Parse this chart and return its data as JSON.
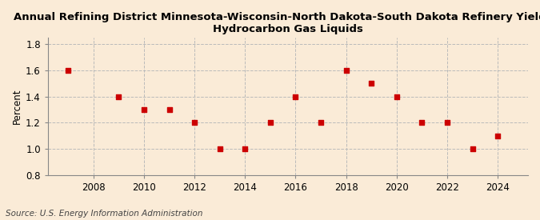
{
  "title": "Annual Refining District Minnesota-Wisconsin-North Dakota-South Dakota Refinery Yield of\nHydrocarbon Gas Liquids",
  "ylabel": "Percent",
  "source": "Source: U.S. Energy Information Administration",
  "background_color": "#faebd7",
  "plot_background_color": "#faebd7",
  "years": [
    2007,
    2009,
    2010,
    2011,
    2012,
    2013,
    2014,
    2015,
    2016,
    2017,
    2018,
    2019,
    2020,
    2021,
    2022,
    2023,
    2024
  ],
  "values": [
    1.6,
    1.4,
    1.3,
    1.3,
    1.2,
    1.0,
    1.0,
    1.2,
    1.4,
    1.2,
    1.6,
    1.5,
    1.4,
    1.2,
    1.2,
    1.0,
    1.1
  ],
  "marker_color": "#cc0000",
  "marker_size": 4,
  "xlim": [
    2006.2,
    2025.2
  ],
  "ylim": [
    0.8,
    1.85
  ],
  "yticks": [
    0.8,
    1.0,
    1.2,
    1.4,
    1.6,
    1.8
  ],
  "xticks": [
    2008,
    2010,
    2012,
    2014,
    2016,
    2018,
    2020,
    2022,
    2024
  ],
  "grid_color": "#bbbbbb",
  "title_fontsize": 9.5,
  "axis_fontsize": 8.5,
  "source_fontsize": 7.5
}
